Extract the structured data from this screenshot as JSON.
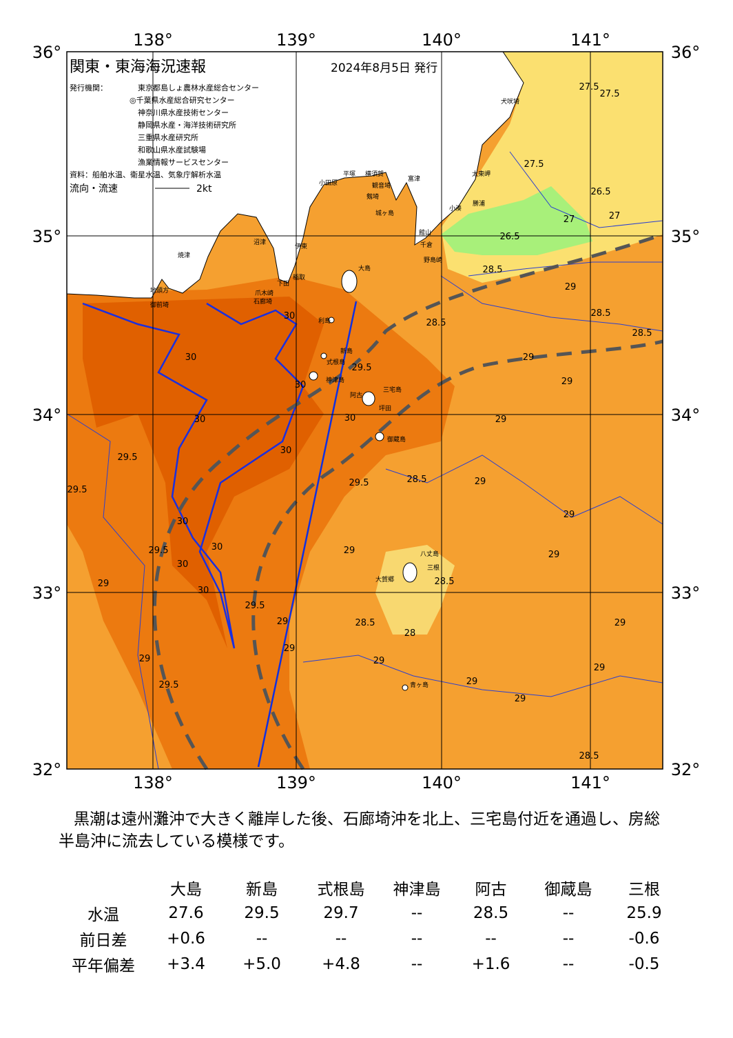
{
  "title": "関東・東海海況速報",
  "issued": "2024年8月5日 発行",
  "issuers_label": "発行機関：",
  "issuers": [
    "東京都島しょ農林水産総合センター",
    "◎千葉県水産総合研究センター",
    "神奈川県水産技術センター",
    "静岡県水産・海洋技術研究所",
    "三重県水産研究所",
    "和歌山県水産試験場",
    "漁業情報サービスセンター"
  ],
  "source": "資料：船舶水温、衛星水温、気象庁解析水温",
  "legend": {
    "label": "流向・流速",
    "speed": "2kt"
  },
  "map": {
    "lon_ticks": [
      "138°",
      "139°",
      "140°",
      "141°"
    ],
    "lat_ticks": [
      "36°",
      "35°",
      "34°",
      "33°",
      "32°"
    ],
    "place_names": [
      "犬吠埼",
      "太東岬",
      "勝浦",
      "小湊",
      "館山",
      "千倉",
      "野島崎",
      "富津",
      "観音埼",
      "横須賀",
      "平塚",
      "小田原",
      "城ヶ島",
      "剱埼",
      "大島",
      "利島",
      "新島",
      "式根島",
      "神津島",
      "三宅島",
      "阿古",
      "坪田",
      "御蔵島",
      "八丈島",
      "大賀郷",
      "三根",
      "青ヶ島",
      "沼津",
      "伊東",
      "稲取",
      "下田",
      "石廊埼",
      "焼津",
      "地頭方",
      "御前埼",
      "爪木崎"
    ],
    "contour_labels": [
      "27.5",
      "27.5",
      "27.5",
      "27",
      "26.5",
      "27",
      "26.5",
      "28.5",
      "29",
      "28.5",
      "28.5",
      "28.5",
      "29",
      "29",
      "29.5",
      "30",
      "30",
      "29",
      "28.5",
      "29",
      "29.5",
      "29",
      "29",
      "29",
      "28.5",
      "28",
      "28.5",
      "29",
      "29",
      "29",
      "29",
      "29",
      "29",
      "29",
      "28.5",
      "30",
      "29.5",
      "29.5",
      "29.5",
      "29",
      "29.5",
      "29",
      "29.5",
      "30",
      "30",
      "30",
      "30",
      "30",
      "30",
      "30"
    ]
  },
  "summary": "黒潮は遠州灘沖で大きく離岸した後、石廊埼沖を北上、三宅島付近を通過し、房総半島沖に流去している模様です。",
  "table": {
    "header": [
      "大島",
      "新島",
      "式根島",
      "神津島",
      "阿古",
      "御蔵島",
      "三根"
    ],
    "rows": [
      [
        "水温",
        "27.6",
        "29.5",
        "29.7",
        "--",
        "28.5",
        "--",
        "25.9"
      ],
      [
        "前日差",
        "+0.6",
        "--",
        "--",
        "--",
        "--",
        "--",
        "-0.6"
      ],
      [
        "平年偏差",
        "+3.4",
        "+5.0",
        "+4.8",
        "--",
        "+1.6",
        "--",
        "-0.5"
      ]
    ]
  }
}
